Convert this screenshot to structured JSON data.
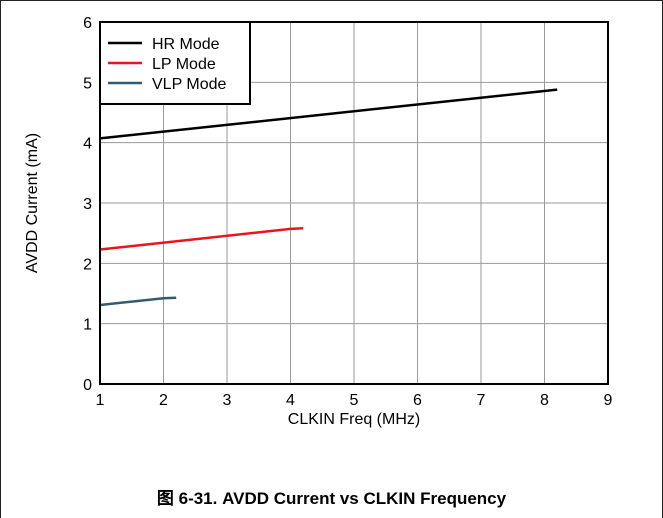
{
  "caption": "图 6-31. AVDD Current vs CLKIN Frequency",
  "chart_data": {
    "type": "line",
    "title": "",
    "xlabel": "CLKIN Freq (MHz)",
    "ylabel": "AVDD Current (mA)",
    "xlim": [
      1,
      9
    ],
    "ylim": [
      0,
      6
    ],
    "xticks": [
      1,
      2,
      3,
      4,
      5,
      6,
      7,
      8,
      9
    ],
    "yticks": [
      0,
      1,
      2,
      3,
      4,
      5,
      6
    ],
    "grid": true,
    "legend_position": "top-left",
    "series": [
      {
        "name": "HR Mode",
        "color": "#000000",
        "points": [
          [
            1.0,
            4.07
          ],
          [
            8.2,
            4.88
          ]
        ]
      },
      {
        "name": "LP Mode",
        "color": "#e8161c",
        "points": [
          [
            1.0,
            2.23
          ],
          [
            4.0,
            2.57
          ],
          [
            4.2,
            2.58
          ]
        ]
      },
      {
        "name": "VLP Mode",
        "color": "#2f5d6e",
        "points": [
          [
            1.0,
            1.31
          ],
          [
            2.0,
            1.42
          ],
          [
            2.2,
            1.43
          ]
        ]
      }
    ]
  }
}
